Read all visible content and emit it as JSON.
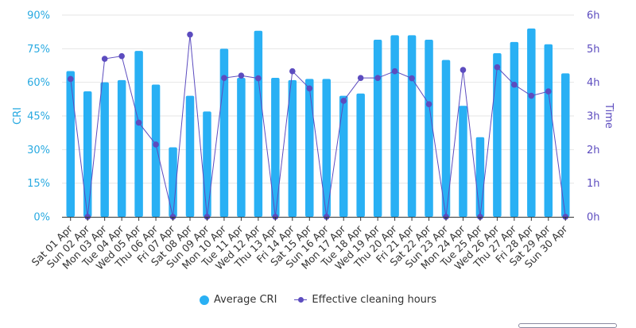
{
  "chart_data": {
    "type": "bar+line",
    "categories": [
      "Sat 01 Apr",
      "Sun 02 Apr",
      "Mon 03 Apr",
      "Tue 04 Apr",
      "Wed 05 Apr",
      "Thu 06 Apr",
      "Fri 07 Apr",
      "Sat 08 Apr",
      "Sun 09 Apr",
      "Mon 10 Apr",
      "Tue 11 Apr",
      "Wed 12 Apr",
      "Thu 13 Apr",
      "Fri 14 Apr",
      "Sat 15 Apr",
      "Sun 16 Apr",
      "Mon 17 Apr",
      "Tue 18 Apr",
      "Wed 19 Apr",
      "Thu 20 Apr",
      "Fri 21 Apr",
      "Sat 22 Apr",
      "Sun 23 Apr",
      "Mon 24 Apr",
      "Tue 25 Apr",
      "Wed 26 Apr",
      "Thu 27 Apr",
      "Fri 28 Apr",
      "Sat 29 Apr",
      "Sun 30 Apr"
    ],
    "series": [
      {
        "name": "Average CRI",
        "type": "bar",
        "axis": "left",
        "color": "#29b0f4",
        "values": [
          65,
          56,
          60,
          61,
          74,
          59,
          31,
          54,
          47,
          75,
          62,
          83,
          62,
          61,
          61.5,
          61.5,
          54,
          55,
          79,
          81,
          81,
          79,
          70,
          49.5,
          35.5,
          73,
          78,
          84,
          77,
          64
        ]
      },
      {
        "name": "Effective cleaning hours",
        "type": "line",
        "axis": "right",
        "color": "#5c4cbf",
        "values": [
          4.1,
          0,
          4.7,
          4.78,
          2.8,
          2.15,
          0,
          5.42,
          0,
          4.13,
          4.2,
          4.12,
          0,
          4.33,
          3.82,
          0,
          3.45,
          4.13,
          4.13,
          4.33,
          4.12,
          3.35,
          0,
          4.37,
          0,
          4.45,
          3.93,
          3.6,
          3.73,
          0
        ]
      }
    ],
    "y_left": {
      "label": "CRI",
      "range": [
        0,
        90
      ],
      "ticks": [
        0,
        15,
        30,
        45,
        60,
        75,
        90
      ],
      "tick_labels": [
        "0%",
        "15%",
        "30%",
        "45%",
        "60%",
        "75%",
        "90%"
      ]
    },
    "y_right": {
      "label": "Time",
      "range": [
        0,
        6
      ],
      "ticks": [
        0,
        1,
        2,
        3,
        4,
        5,
        6
      ],
      "tick_labels": [
        "0h",
        "1h",
        "2h",
        "3h",
        "4h",
        "5h",
        "6h"
      ]
    },
    "grid": true,
    "legend_position": "bottom"
  }
}
